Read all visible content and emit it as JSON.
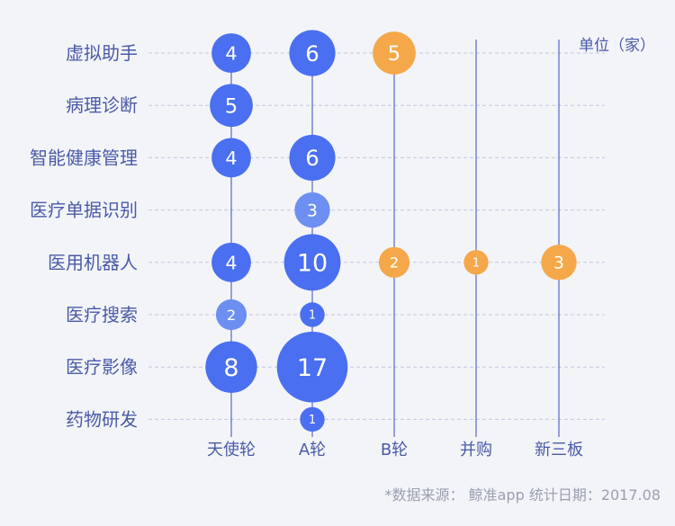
{
  "chart_data": {
    "type": "scatter",
    "title": "",
    "xlabel": "",
    "ylabel": "",
    "unit_label": "单位（家）",
    "source_note": "*数据来源： 鲸准app  统计日期：2017.08",
    "categories_y": [
      "虚拟助手",
      "病理诊断",
      "智能健康管理",
      "医疗单据识别",
      "医用机器人",
      "医疗搜索",
      "医疗影像",
      "药物研发"
    ],
    "categories_x": [
      "天使轮",
      "A轮",
      "B轮",
      "并购",
      "新三板"
    ],
    "points": [
      {
        "y": "虚拟助手",
        "x": "天使轮",
        "value": 4
      },
      {
        "y": "虚拟助手",
        "x": "A轮",
        "value": 6
      },
      {
        "y": "虚拟助手",
        "x": "B轮",
        "value": 5
      },
      {
        "y": "病理诊断",
        "x": "天使轮",
        "value": 5
      },
      {
        "y": "智能健康管理",
        "x": "天使轮",
        "value": 4
      },
      {
        "y": "智能健康管理",
        "x": "A轮",
        "value": 6
      },
      {
        "y": "医疗单据识别",
        "x": "A轮",
        "value": 3
      },
      {
        "y": "医用机器人",
        "x": "天使轮",
        "value": 4
      },
      {
        "y": "医用机器人",
        "x": "A轮",
        "value": 10
      },
      {
        "y": "医用机器人",
        "x": "B轮",
        "value": 2
      },
      {
        "y": "医用机器人",
        "x": "并购",
        "value": 1
      },
      {
        "y": "医用机器人",
        "x": "新三板",
        "value": 3
      },
      {
        "y": "医疗搜索",
        "x": "天使轮",
        "value": 2
      },
      {
        "y": "医疗搜索",
        "x": "A轮",
        "value": 1
      },
      {
        "y": "医疗影像",
        "x": "天使轮",
        "value": 8
      },
      {
        "y": "医疗影像",
        "x": "A轮",
        "value": 17
      },
      {
        "y": "药物研发",
        "x": "A轮",
        "value": 1
      }
    ],
    "colors": {
      "early_stage": "#4a6ff0",
      "early_stage_light": "#6e8ff2",
      "later_stage": "#f5a84a",
      "label_text": "#4a5aa8",
      "axis_line": "#5a66c8",
      "grid_line": "#c3c7de"
    },
    "grid": true,
    "legend": "none"
  }
}
